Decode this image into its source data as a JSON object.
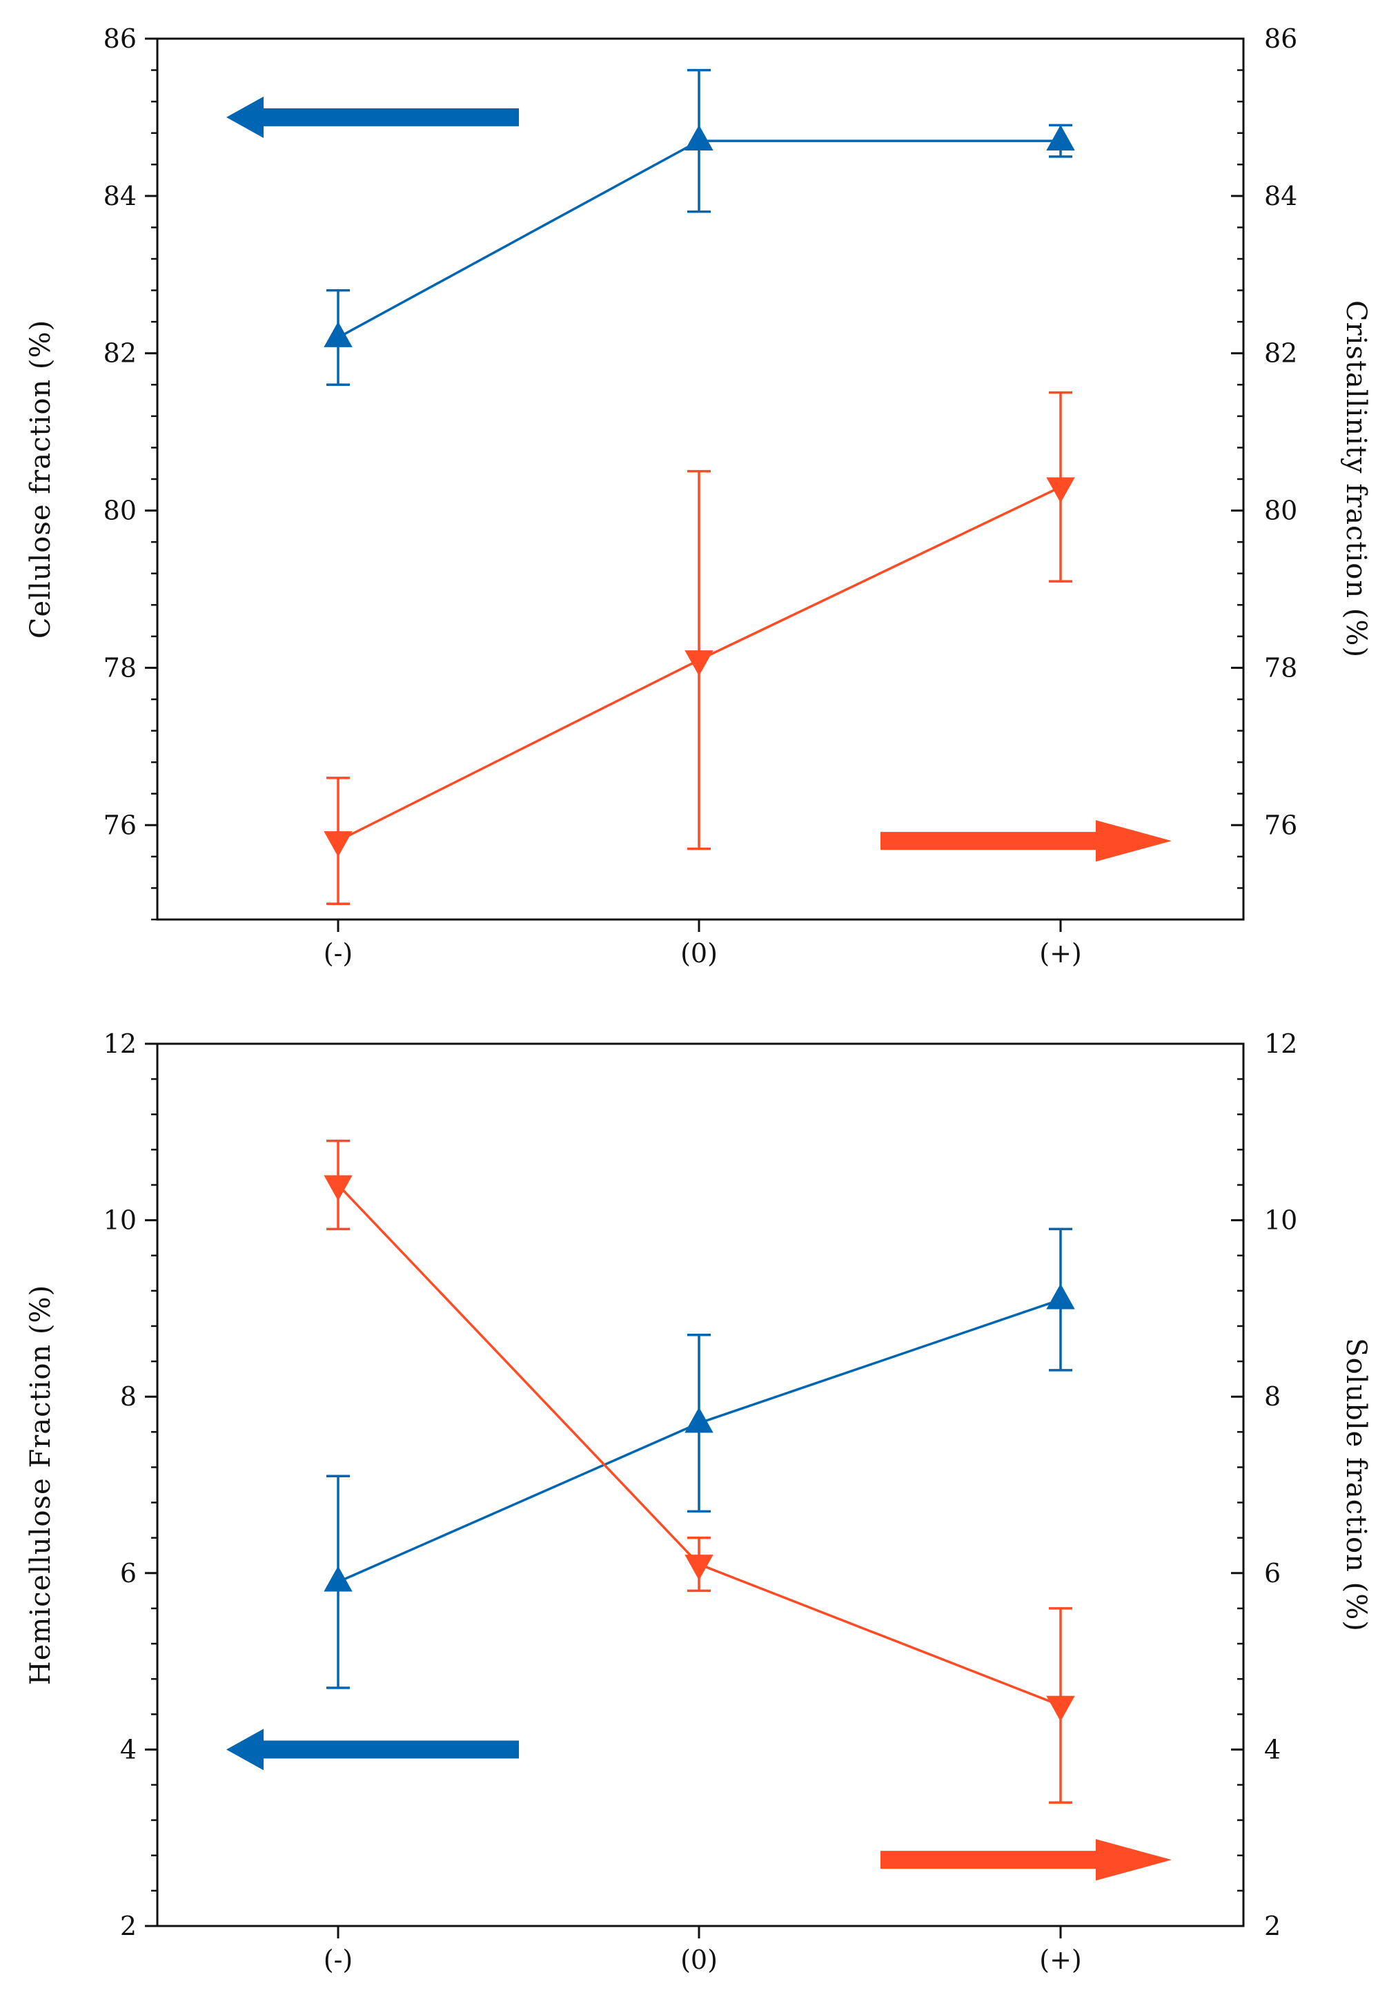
{
  "chart_data": [
    {
      "type": "line",
      "categories": [
        "(-)",
        "(0)",
        "(+)"
      ],
      "left_axis": {
        "label": "Cellulose fraction  (%)",
        "ylim": [
          74.8,
          86
        ],
        "major_ticks": [
          76,
          78,
          80,
          82,
          84,
          86
        ],
        "minor_step": 0.4
      },
      "right_axis": {
        "label": "Cristallinity fraction  (%)",
        "ylim": [
          74.8,
          86
        ],
        "major_ticks": [
          76,
          78,
          80,
          82,
          84,
          86
        ],
        "minor_step": 0.4
      },
      "series": [
        {
          "name": "Cellulose fraction",
          "axis": "left",
          "marker": "triangle-up",
          "color": "#0066b3",
          "values": [
            82.2,
            84.7,
            84.7
          ],
          "err_low": [
            81.6,
            83.8,
            84.5
          ],
          "err_high": [
            82.8,
            85.6,
            84.9
          ]
        },
        {
          "name": "Cristallinity fraction",
          "axis": "right",
          "marker": "triangle-down",
          "color": "#ff4c25",
          "values": [
            75.8,
            78.1,
            80.3
          ],
          "err_low": [
            75.0,
            75.7,
            79.1
          ],
          "err_high": [
            76.6,
            80.5,
            81.5
          ]
        }
      ],
      "annotations": [
        {
          "type": "arrow",
          "direction": "left",
          "color": "#0066b3",
          "meaning": "left axis"
        },
        {
          "type": "arrow",
          "direction": "right",
          "color": "#ff4c25",
          "meaning": "right axis"
        }
      ]
    },
    {
      "type": "line",
      "categories": [
        "(-)",
        "(0)",
        "(+)"
      ],
      "left_axis": {
        "label": "Hemicellulose Fraction  (%)",
        "ylim": [
          2,
          12
        ],
        "major_ticks": [
          2,
          4,
          6,
          8,
          10,
          12
        ],
        "minor_step": 0.4
      },
      "right_axis": {
        "label": "Soluble fraction  (%)",
        "ylim": [
          2,
          12
        ],
        "major_ticks": [
          2,
          4,
          6,
          8,
          10,
          12
        ],
        "minor_step": 0.4
      },
      "series": [
        {
          "name": "Hemicellulose Fraction",
          "axis": "left",
          "marker": "triangle-up",
          "color": "#0066b3",
          "values": [
            5.9,
            7.7,
            9.1
          ],
          "err_low": [
            4.7,
            6.7,
            8.3
          ],
          "err_high": [
            7.1,
            8.7,
            9.9
          ]
        },
        {
          "name": "Soluble fraction",
          "axis": "right",
          "marker": "triangle-down",
          "color": "#ff4c25",
          "values": [
            10.4,
            6.1,
            4.5
          ],
          "err_low": [
            9.9,
            5.8,
            3.4
          ],
          "err_high": [
            10.9,
            6.4,
            5.6
          ]
        }
      ],
      "annotations": [
        {
          "type": "arrow",
          "direction": "left",
          "color": "#0066b3",
          "meaning": "left axis"
        },
        {
          "type": "arrow",
          "direction": "right",
          "color": "#ff4c25",
          "meaning": "right axis"
        }
      ]
    }
  ]
}
